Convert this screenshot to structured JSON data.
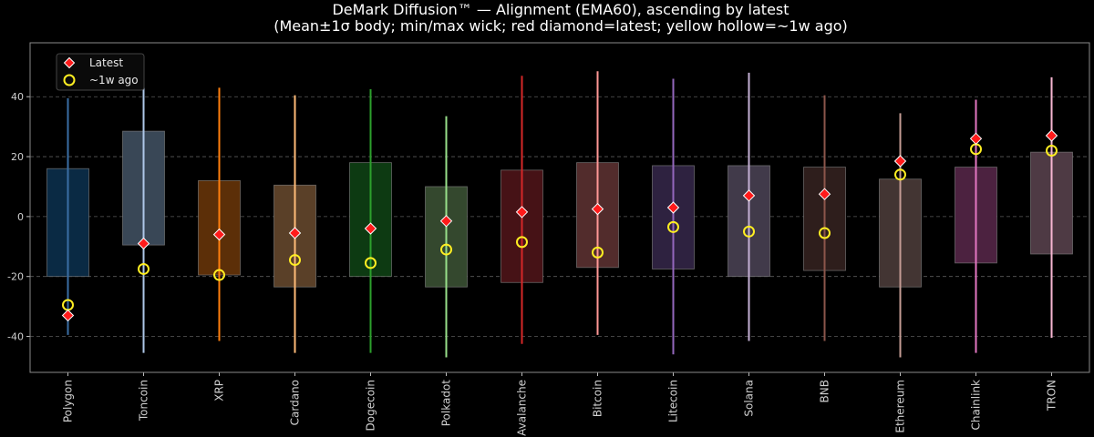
{
  "chart_data": {
    "type": "box",
    "title_line1": "DeMark Diffusion™ — Alignment (EMA60), ascending by latest",
    "title_line2": "(Mean±1σ body; min/max wick; red diamond=latest; yellow hollow=~1w ago)",
    "ylim": [
      -52,
      58
    ],
    "yticks": [
      -40,
      -20,
      0,
      20,
      40
    ],
    "grid": true,
    "legend_position": "top-left",
    "legend": [
      {
        "label": "Latest",
        "marker": "diamond",
        "color": "#ff1a1a"
      },
      {
        "label": "~1w ago",
        "marker": "hollow-circle",
        "color": "#ffee22"
      }
    ],
    "categories": [
      "Polygon",
      "Toncoin",
      "XRP",
      "Cardano",
      "Dogecoin",
      "Polkadot",
      "Avalanche",
      "Bitcoin",
      "Litecoin",
      "Solana",
      "BNB",
      "Ethereum",
      "Chainlink",
      "TRON"
    ],
    "box_low": [
      -20,
      -9.5,
      -19.5,
      -23.5,
      -20,
      -23.5,
      -22,
      -17,
      -17.5,
      -20,
      -18,
      -23.5,
      -15.5,
      -12.5
    ],
    "box_high": [
      16,
      28.5,
      12,
      10.5,
      18,
      10,
      15.5,
      18,
      17,
      17,
      16.5,
      12.5,
      16.5,
      21.5
    ],
    "wick_min": [
      -39.5,
      -45.5,
      -41.5,
      -45.5,
      -45.5,
      -47,
      -42.5,
      -39.5,
      -46,
      -41.5,
      -41.5,
      -47,
      -45.5,
      -40.5
    ],
    "wick_max": [
      39.5,
      53,
      43,
      40.5,
      42.5,
      33.5,
      47,
      48.5,
      46,
      48,
      40.5,
      34.5,
      39,
      46.5
    ],
    "latest": [
      -33,
      -9,
      -6,
      -5.5,
      -4,
      -1.5,
      1.5,
      2.5,
      3,
      7,
      7.5,
      18.5,
      26,
      27
    ],
    "week_ago": [
      -29.5,
      -17.5,
      -19.5,
      -14.5,
      -15.5,
      -11,
      -8.5,
      -12,
      -3.5,
      -5,
      -5.5,
      14,
      22.5,
      22
    ],
    "colors": [
      {
        "fill": "#0a2a44",
        "wick": "#3a6ea5"
      },
      {
        "fill": "#394756",
        "wick": "#aec7e8"
      },
      {
        "fill": "#5c2f08",
        "wick": "#ff7f0e"
      },
      {
        "fill": "#5a4028",
        "wick": "#ffbb78"
      },
      {
        "fill": "#0d3a12",
        "wick": "#2ca02c"
      },
      {
        "fill": "#34482e",
        "wick": "#98df8a"
      },
      {
        "fill": "#461216",
        "wick": "#d62728"
      },
      {
        "fill": "#522c2c",
        "wick": "#ff9896"
      },
      {
        "fill": "#2e2240",
        "wick": "#9467bd"
      },
      {
        "fill": "#413a4a",
        "wick": "#c5b0d5"
      },
      {
        "fill": "#2e1e1c",
        "wick": "#8c564b"
      },
      {
        "fill": "#433533",
        "wick": "#c49c94"
      },
      {
        "fill": "#4c2240",
        "wick": "#e377c2"
      },
      {
        "fill": "#4e3a44",
        "wick": "#f7b6d2"
      }
    ]
  }
}
